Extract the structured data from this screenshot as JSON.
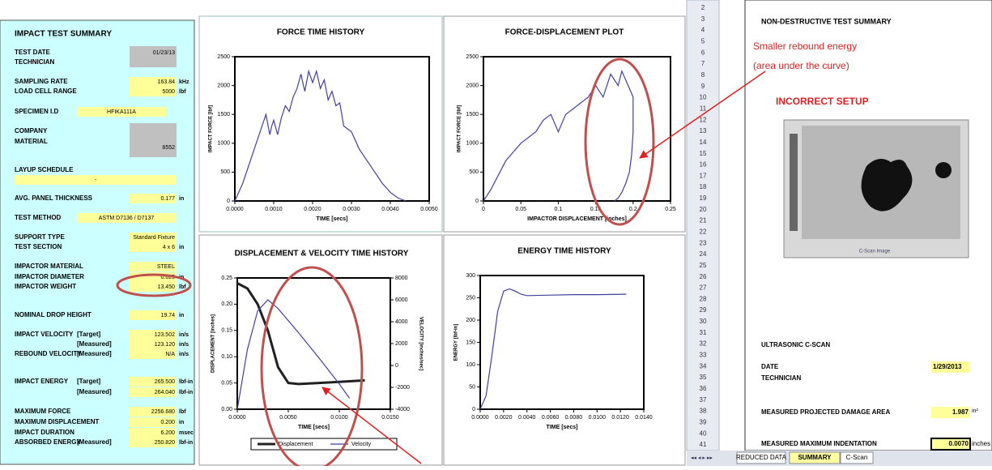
{
  "summary": {
    "title": "IMPACT TEST SUMMARY",
    "rows": [
      {
        "label": "TEST DATE",
        "value": "01/23/13"
      },
      {
        "label": "TECHNICIAN"
      },
      {
        "label": "SAMPLING RATE",
        "value": "163.84",
        "unit": "kHz"
      },
      {
        "label": "LOAD CELL RANGE",
        "value": "5000",
        "unit": "lbf"
      },
      {
        "label": "SPECIMEN I.D",
        "value": "HFIKA111A"
      },
      {
        "label": "COMPANY"
      },
      {
        "label": "MATERIAL",
        "value": "8552"
      },
      {
        "label": "LAYUP SCHEDULE",
        "value": "-"
      },
      {
        "label": "AVG. PANEL THICKNESS",
        "value": "0.177",
        "unit": "in"
      },
      {
        "label": "TEST METHOD",
        "value": "ASTM D7136 / D7137"
      },
      {
        "label": "SUPPORT TYPE",
        "value": "Standard Fixture"
      },
      {
        "label": "TEST SECTION",
        "value": "4 x 6",
        "unit": "in"
      },
      {
        "label": "IMPACTOR MATERIAL",
        "value": "STEEL"
      },
      {
        "label": "IMPACTOR DIAMETER",
        "value": "0.625",
        "unit": "in"
      },
      {
        "label": "IMPACTOR WEIGHT",
        "value": "13.450",
        "unit": "lbf"
      },
      {
        "label": "NOMINAL DROP HEIGHT",
        "value": "19.74",
        "unit": "in"
      },
      {
        "label": "IMPACT VELOCITY",
        "qualifier": "[Target]",
        "value": "123.502",
        "unit": "in/s"
      },
      {
        "qualifier": "[Measured]",
        "value": "123.120",
        "unit": "in/s"
      },
      {
        "label": "REBOUND VELOCITY",
        "qualifier": "[Measured]",
        "value": "N/A",
        "unit": "in/s"
      },
      {
        "label": "IMPACT ENERGY",
        "qualifier": "[Target]",
        "value": "265.500",
        "unit": "lbf-in"
      },
      {
        "qualifier": "[Measured]",
        "value": "264.040",
        "unit": "lbf-in"
      },
      {
        "label": "MAXIMUM FORCE",
        "value": "2256.680",
        "unit": "lbf"
      },
      {
        "label": "MAXIMUM DISPLACEMENT",
        "value": "0.200",
        "unit": "in"
      },
      {
        "label": "IMPACT DURATION",
        "value": "6.200",
        "unit": "msec"
      },
      {
        "label": "ABSORBED ENERGY",
        "qualifier": "[Measured]",
        "value": "250.820",
        "unit": "lbf-in"
      }
    ]
  },
  "chart_data": [
    {
      "type": "line",
      "title": "FORCE TIME HISTORY",
      "x_label": "TIME [secs]",
      "y_label": "IMPACT FORCE [lbf]",
      "xlim": [
        0,
        0.005
      ],
      "xticks": [
        {
          "value": 0,
          "label": "0.0000"
        },
        {
          "value": 0.001,
          "label": "0.0010"
        },
        {
          "value": 0.002,
          "label": "0.0020"
        },
        {
          "value": 0.003,
          "label": "0.0030"
        },
        {
          "value": 0.004,
          "label": "0.0040"
        },
        {
          "value": 0.005,
          "label": "0.0050"
        }
      ],
      "ylim": [
        0,
        2500
      ],
      "yticks": [
        0,
        500,
        1000,
        1500,
        2000,
        2500
      ],
      "series": [
        {
          "color": "#4040a0",
          "x": [
            0,
            0.0002,
            0.0004,
            0.0006,
            0.0008,
            0.0009,
            0.00095,
            0.001,
            0.0011,
            0.0012,
            0.0013,
            0.0014,
            0.0015,
            0.0016,
            0.0017,
            0.0018,
            0.0019,
            0.002,
            0.0021,
            0.0022,
            0.0023,
            0.0024,
            0.0025,
            0.0026,
            0.0027,
            0.0028,
            0.003,
            0.0032,
            0.0034,
            0.0036,
            0.0038,
            0.004,
            0.0042,
            0.0044
          ],
          "values": [
            0,
            300,
            700,
            1100,
            1500,
            1150,
            1300,
            1400,
            1150,
            1450,
            1650,
            1550,
            1800,
            1950,
            2200,
            1900,
            2250,
            2050,
            2250,
            1950,
            2100,
            1750,
            1900,
            1650,
            1700,
            1300,
            1200,
            900,
            700,
            500,
            300,
            150,
            50,
            0
          ]
        }
      ]
    },
    {
      "type": "line",
      "title": "FORCE-DISPLACEMENT PLOT",
      "x_label": "IMPACTOR DISPLACEMENT [inches]",
      "y_label": "IMPACT FORCE [lbf]",
      "xlim": [
        0,
        0.25
      ],
      "xticks": [
        0,
        0.05,
        0.1,
        0.15,
        0.2,
        0.25
      ],
      "ylim": [
        0,
        2500
      ],
      "yticks": [
        0,
        500,
        1000,
        1500,
        2000,
        2500
      ],
      "series": [
        {
          "color": "#4040a0",
          "x": [
            0,
            0.01,
            0.03,
            0.05,
            0.07,
            0.08,
            0.09,
            0.1,
            0.11,
            0.12,
            0.14,
            0.15,
            0.16,
            0.17,
            0.18,
            0.185,
            0.19,
            0.2,
            0.2,
            0.198,
            0.195,
            0.19,
            0.185,
            0.18,
            0.175
          ],
          "values": [
            0,
            200,
            700,
            1000,
            1200,
            1400,
            1500,
            1200,
            1500,
            1600,
            1800,
            2000,
            1800,
            2200,
            2000,
            2250,
            2100,
            1800,
            1200,
            800,
            500,
            300,
            150,
            50,
            0
          ]
        }
      ]
    },
    {
      "type": "line",
      "title": "DISPLACEMENT & VELOCITY TIME HISTORY",
      "x_label": "TIME [secs]",
      "y_label": "DISPLACEMENT [inches]",
      "y2_label": "VELOCITY [inches/sec]",
      "xlim": [
        0,
        0.015
      ],
      "xticks": [
        {
          "value": 0,
          "label": "0.0000"
        },
        {
          "value": 0.005,
          "label": "0.0050"
        },
        {
          "value": 0.01,
          "label": "0.0100"
        },
        {
          "value": 0.015,
          "label": "0.0150"
        }
      ],
      "ylim": [
        0,
        0.25
      ],
      "yticks": [
        {
          "value": 0,
          "label": "0.00"
        },
        {
          "value": 0.05,
          "label": "0.05"
        },
        {
          "value": 0.1,
          "label": "0.10"
        },
        {
          "value": 0.15,
          "label": "0.15"
        },
        {
          "value": 0.2,
          "label": "0.20"
        },
        {
          "value": 0.25,
          "label": "0.25"
        }
      ],
      "y2lim": [
        -4000,
        8000
      ],
      "y2ticks": [
        -4000,
        -2000,
        0,
        2000,
        4000,
        6000,
        8000
      ],
      "series": [
        {
          "name": "Displacement",
          "color": "#202020",
          "width": 3,
          "x": [
            0,
            0.001,
            0.002,
            0.003,
            0.004,
            0.005,
            0.006,
            0.008,
            0.01,
            0.0125
          ],
          "values": [
            0.24,
            0.23,
            0.2,
            0.15,
            0.08,
            0.05,
            0.048,
            0.05,
            0.052,
            0.055
          ]
        },
        {
          "name": "Velocity",
          "color": "#4040a0",
          "axis": "y2",
          "x": [
            0,
            0.001,
            0.002,
            0.003,
            0.004,
            0.006,
            0.008,
            0.01,
            0.011
          ],
          "values": [
            -4000,
            1500,
            5000,
            6000,
            5200,
            3000,
            700,
            -1700,
            -3000
          ]
        }
      ]
    },
    {
      "type": "line",
      "title": "ENERGY TIME HISTORY",
      "x_label": "TIME [secs]",
      "y_label": "ENERGY [lbf-in]",
      "xlim": [
        0,
        0.014
      ],
      "xticks": [
        {
          "value": 0,
          "label": "0.0000"
        },
        {
          "value": 0.002,
          "label": "0.0020"
        },
        {
          "value": 0.004,
          "label": "0.0040"
        },
        {
          "value": 0.006,
          "label": "0.0060"
        },
        {
          "value": 0.008,
          "label": "0.0080"
        },
        {
          "value": 0.01,
          "label": "0.0100"
        },
        {
          "value": 0.012,
          "label": "0.0120"
        },
        {
          "value": 0.014,
          "label": "0.0140"
        }
      ],
      "ylim": [
        0,
        300
      ],
      "yticks": [
        0,
        50,
        100,
        150,
        200,
        250,
        300
      ],
      "series": [
        {
          "color": "#4040a0",
          "x": [
            0,
            0.0005,
            0.001,
            0.0015,
            0.002,
            0.0025,
            0.003,
            0.0035,
            0.004,
            0.006,
            0.008,
            0.01,
            0.0125
          ],
          "values": [
            0,
            30,
            120,
            220,
            265,
            270,
            265,
            258,
            255,
            256,
            257,
            257,
            258
          ]
        }
      ]
    }
  ],
  "sheet": {
    "row_numbers": [
      2,
      3,
      4,
      5,
      6,
      7,
      8,
      9,
      10,
      11,
      12,
      13,
      14,
      15,
      16,
      17,
      18,
      19,
      20,
      21,
      22,
      23,
      24,
      25,
      26,
      27,
      28,
      29,
      30,
      31,
      32,
      33,
      34,
      35,
      36,
      37,
      38,
      39,
      40,
      41
    ],
    "title": "NON-DESTRUCTIVE TEST SUMMARY",
    "cscan_caption": "C-Scan Image",
    "section": "ULTRASONIC C-SCAN",
    "date_label": "DATE",
    "date_value": "1/29/2013",
    "technician_label": "TECHNICIAN",
    "area_label": "MEASURED PROJECTED DAMAGE AREA",
    "area_value": "1.987",
    "area_unit": "in²",
    "indent_label": "MEASURED MAXIMUM INDENTATION",
    "indent_value": "0.0070",
    "indent_unit": "inches",
    "tabs": [
      "REDUCED DATA",
      "SUMMARY",
      "C-Scan"
    ]
  },
  "annotations": {
    "rebound_line1": "Smaller rebound energy",
    "rebound_line2": "(area under the curve)",
    "setup": "INCORRECT SETUP"
  }
}
